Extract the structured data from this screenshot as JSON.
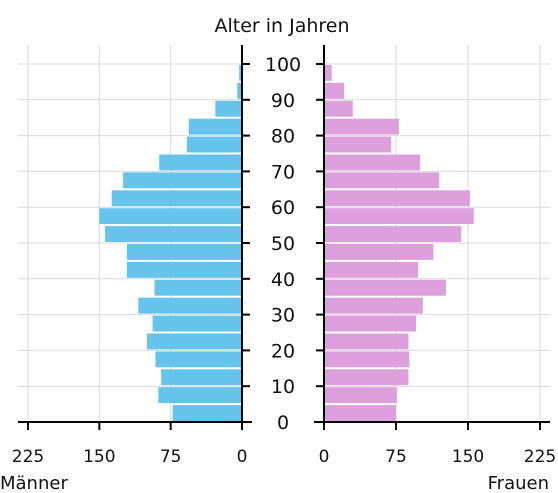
{
  "chart_data": {
    "type": "bar",
    "title": "Alter in Jahren",
    "age_axis": {
      "min": 0,
      "max": 100,
      "ticks": [
        "0",
        "10",
        "20",
        "30",
        "40",
        "50",
        "60",
        "70",
        "80",
        "90",
        "100"
      ]
    },
    "age_groups": [
      "0-4",
      "5-9",
      "10-14",
      "15-19",
      "20-24",
      "25-29",
      "30-34",
      "35-39",
      "40-44",
      "45-49",
      "50-54",
      "55-59",
      "60-64",
      "65-69",
      "70-74",
      "75-79",
      "80-84",
      "85-89",
      "90-94",
      "95-99"
    ],
    "series": [
      {
        "name": "Männer",
        "color": "#66c3eb",
        "values": [
          73,
          88,
          85,
          91,
          100,
          94,
          109,
          92,
          121,
          121,
          144,
          150,
          137,
          125,
          87,
          58,
          56,
          28,
          5,
          3
        ]
      },
      {
        "name": "Frauen",
        "color": "#dda0dd",
        "values": [
          75,
          76,
          88,
          89,
          88,
          96,
          103,
          127,
          98,
          114,
          143,
          156,
          152,
          120,
          100,
          70,
          78,
          30,
          21,
          8
        ]
      }
    ],
    "x_axis": {
      "min": 0,
      "max": 225,
      "ticks": [
        "0",
        "75",
        "150",
        "225"
      ]
    },
    "grid": true
  }
}
